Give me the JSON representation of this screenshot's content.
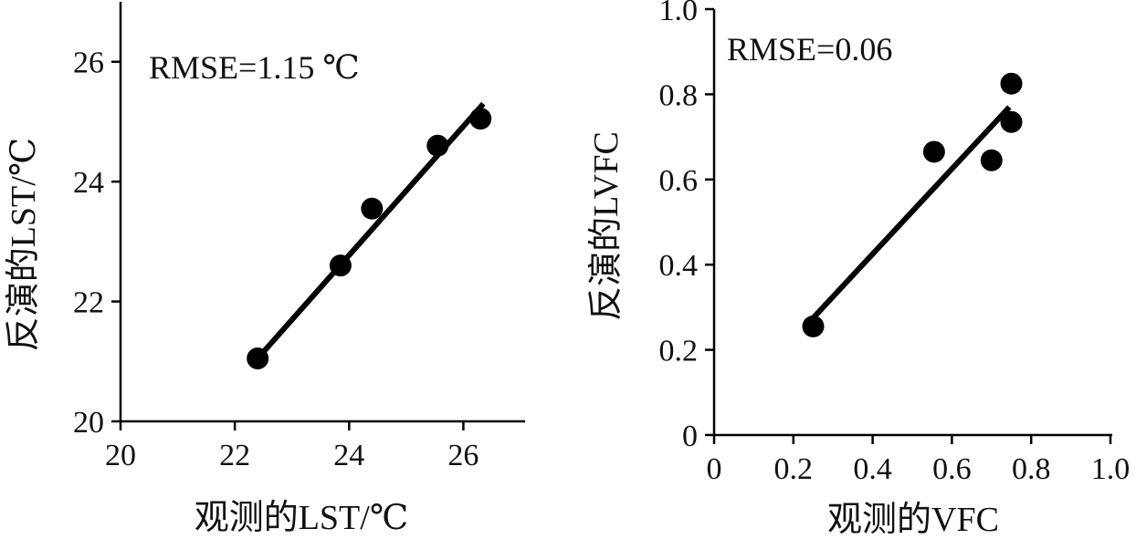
{
  "chart_data": [
    {
      "type": "scatter",
      "annotation": "RMSE=1.15 ℃",
      "xlabel": "观测的LST/℃",
      "ylabel": "反演的LST/℃",
      "xlim": [
        20,
        27
      ],
      "ylim": [
        20,
        27
      ],
      "x_ticks": [
        20,
        22,
        24,
        26
      ],
      "y_ticks": [
        20,
        22,
        24,
        26
      ],
      "x_tick_labels": [
        "20",
        "22",
        "24",
        "26"
      ],
      "y_tick_labels": [
        "20",
        "22",
        "24",
        "26"
      ],
      "points": [
        {
          "x": 22.4,
          "y": 21.05
        },
        {
          "x": 23.85,
          "y": 22.6
        },
        {
          "x": 24.4,
          "y": 23.55
        },
        {
          "x": 25.55,
          "y": 24.6
        },
        {
          "x": 26.3,
          "y": 25.05
        }
      ],
      "fit_line": {
        "x": [
          22.4,
          26.35
        ],
        "y": [
          21.05,
          25.3
        ]
      },
      "grid": false,
      "legend": "none"
    },
    {
      "type": "scatter",
      "annotation": "RMSE=0.06",
      "xlabel": "观测的VFC",
      "ylabel": "反演的LVFC",
      "xlim": [
        0,
        1.0
      ],
      "ylim": [
        0,
        1.0
      ],
      "x_ticks": [
        0,
        0.2,
        0.4,
        0.6,
        0.8,
        1.0
      ],
      "y_ticks": [
        0,
        0.2,
        0.4,
        0.6,
        0.8,
        1.0
      ],
      "x_tick_labels": [
        "0",
        "0.2",
        "0.4",
        "0.6",
        "0.8",
        "1.0"
      ],
      "y_tick_labels": [
        "0",
        "0.2",
        "0.4",
        "0.6",
        "0.8",
        "1.0"
      ],
      "points": [
        {
          "x": 0.25,
          "y": 0.255
        },
        {
          "x": 0.555,
          "y": 0.665
        },
        {
          "x": 0.7,
          "y": 0.645
        },
        {
          "x": 0.75,
          "y": 0.825
        },
        {
          "x": 0.75,
          "y": 0.735
        }
      ],
      "fit_line": {
        "x": [
          0.245,
          0.745
        ],
        "y": [
          0.27,
          0.77
        ]
      },
      "grid": false,
      "legend": "none"
    }
  ]
}
